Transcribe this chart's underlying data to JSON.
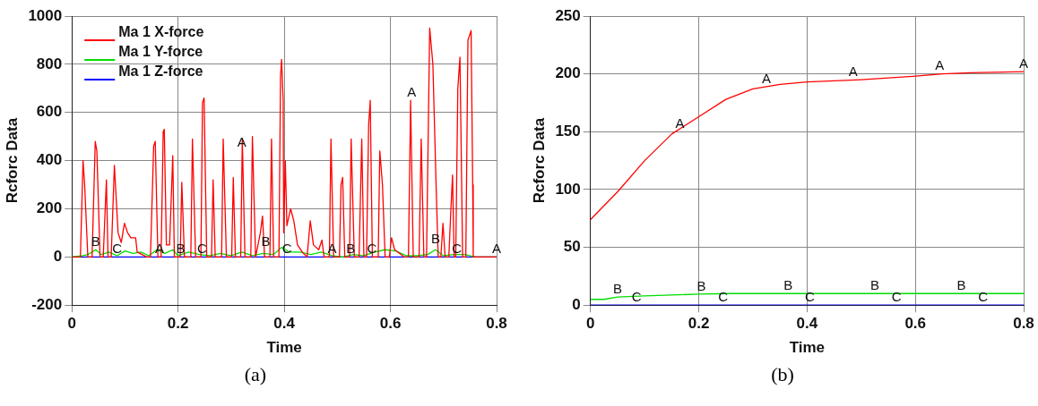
{
  "chart_data": [
    {
      "type": "line",
      "xlabel": "Time",
      "ylabel": "Rcforc Data",
      "xlim": [
        0,
        0.8
      ],
      "xticks": [
        0,
        0.2,
        0.4,
        0.6,
        0.8
      ],
      "ylim": [
        -200,
        1000
      ],
      "yticks": [
        -200,
        0,
        200,
        400,
        600,
        800,
        1000
      ],
      "grid": true,
      "legend": "top left",
      "marker": "none",
      "line_style": "solid",
      "series": [
        {
          "name": "Ma 1 X-force",
          "color": "#ff0000",
          "x": [
            0,
            0.016,
            0.021,
            0.024,
            0.03,
            0.038,
            0.044,
            0.047,
            0.053,
            0.059,
            0.065,
            0.068,
            0.074,
            0.08,
            0.087,
            0.093,
            0.099,
            0.105,
            0.111,
            0.12,
            0.123,
            0.141,
            0.148,
            0.154,
            0.157,
            0.162,
            0.168,
            0.172,
            0.174,
            0.178,
            0.184,
            0.19,
            0.193,
            0.204,
            0.207,
            0.212,
            0.224,
            0.227,
            0.233,
            0.243,
            0.246,
            0.249,
            0.254,
            0.263,
            0.266,
            0.27,
            0.282,
            0.285,
            0.291,
            0.301,
            0.304,
            0.308,
            0.318,
            0.321,
            0.326,
            0.337,
            0.34,
            0.346,
            0.355,
            0.359,
            0.363,
            0.373,
            0.376,
            0.38,
            0.39,
            0.393,
            0.395,
            0.398,
            0.399,
            0.402,
            0.405,
            0.412,
            0.418,
            0.425,
            0.434,
            0.443,
            0.449,
            0.455,
            0.465,
            0.471,
            0.475,
            0.485,
            0.488,
            0.493,
            0.504,
            0.507,
            0.51,
            0.514,
            0.523,
            0.526,
            0.532,
            0.541,
            0.546,
            0.55,
            0.555,
            0.559,
            0.562,
            0.566,
            0.577,
            0.58,
            0.585,
            0.59,
            0.598,
            0.602,
            0.608,
            0.626,
            0.634,
            0.638,
            0.643,
            0.654,
            0.658,
            0.663,
            0.668,
            0.674,
            0.68,
            0.686,
            0.69,
            0.695,
            0.699,
            0.703,
            0.71,
            0.714,
            0.717,
            0.72,
            0.723,
            0.727,
            0.731,
            0.736,
            0.742,
            0.746,
            0.752,
            0.755,
            0.756,
            0.8
          ],
          "values": [
            0,
            0,
            400,
            300,
            0,
            0,
            480,
            440,
            0,
            0,
            320,
            0,
            0,
            380,
            100,
            60,
            140,
            100,
            80,
            80,
            20,
            0,
            0,
            460,
            480,
            0,
            0,
            520,
            530,
            50,
            50,
            420,
            0,
            0,
            310,
            0,
            0,
            490,
            0,
            0,
            640,
            660,
            0,
            0,
            320,
            0,
            0,
            490,
            0,
            0,
            330,
            0,
            0,
            490,
            0,
            0,
            500,
            0,
            100,
            170,
            0,
            0,
            490,
            0,
            0,
            750,
            820,
            650,
            100,
            400,
            130,
            200,
            150,
            50,
            20,
            0,
            150,
            50,
            30,
            70,
            0,
            0,
            490,
            0,
            0,
            300,
            330,
            0,
            0,
            490,
            0,
            0,
            490,
            0,
            0,
            550,
            650,
            0,
            0,
            440,
            300,
            0,
            0,
            80,
            30,
            0,
            0,
            650,
            0,
            0,
            490,
            0,
            0,
            950,
            800,
            300,
            0,
            0,
            140,
            0,
            0,
            200,
            340,
            0,
            0,
            700,
            830,
            0,
            0,
            900,
            940,
            300,
            0,
            0
          ]
        },
        {
          "name": "Ma 1 Y-force",
          "color": "#00dd00",
          "x": [
            0,
            0.02,
            0.03,
            0.045,
            0.055,
            0.07,
            0.085,
            0.1,
            0.115,
            0.13,
            0.145,
            0.16,
            0.175,
            0.19,
            0.2,
            0.22,
            0.24,
            0.26,
            0.28,
            0.3,
            0.32,
            0.34,
            0.36,
            0.38,
            0.395,
            0.41,
            0.43,
            0.45,
            0.47,
            0.49,
            0.51,
            0.53,
            0.55,
            0.57,
            0.59,
            0.61,
            0.63,
            0.65,
            0.67,
            0.685,
            0.7,
            0.72,
            0.74,
            0.76,
            0.8
          ],
          "values": [
            0,
            5,
            10,
            30,
            10,
            20,
            5,
            25,
            15,
            20,
            5,
            30,
            15,
            30,
            5,
            20,
            10,
            5,
            15,
            5,
            20,
            5,
            15,
            10,
            40,
            20,
            20,
            10,
            20,
            5,
            0,
            10,
            5,
            20,
            30,
            25,
            5,
            5,
            10,
            30,
            5,
            10,
            10,
            0,
            0
          ]
        },
        {
          "name": "Ma 1 Z-force",
          "color": "#0000ff",
          "x": [
            0,
            0.8
          ],
          "values": [
            0,
            0
          ]
        }
      ],
      "annotations": [
        {
          "text": "A",
          "x": 0.32,
          "y": 440
        },
        {
          "text": "A",
          "x": 0.64,
          "y": 650
        },
        {
          "text": "A",
          "x": 0.165,
          "y": 0
        },
        {
          "text": "A",
          "x": 0.49,
          "y": 0
        },
        {
          "text": "A",
          "x": 0.8,
          "y": 0
        },
        {
          "text": "B",
          "x": 0.045,
          "y": 30
        },
        {
          "text": "B",
          "x": 0.205,
          "y": 0
        },
        {
          "text": "B",
          "x": 0.365,
          "y": 30
        },
        {
          "text": "B",
          "x": 0.525,
          "y": 0
        },
        {
          "text": "B",
          "x": 0.685,
          "y": 40
        },
        {
          "text": "C",
          "x": 0.085,
          "y": 0
        },
        {
          "text": "C",
          "x": 0.245,
          "y": 0
        },
        {
          "text": "C",
          "x": 0.405,
          "y": 0
        },
        {
          "text": "C",
          "x": 0.565,
          "y": 0
        },
        {
          "text": "C",
          "x": 0.725,
          "y": 0
        },
        "(a)"
      ]
    },
    {
      "type": "line",
      "xlabel": "Time",
      "ylabel": "Rcforc Data",
      "xlim": [
        0,
        0.8
      ],
      "xticks": [
        0,
        0.2,
        0.4,
        0.6,
        0.8
      ],
      "ylim": [
        0,
        250
      ],
      "yticks": [
        0,
        50,
        100,
        150,
        200,
        250
      ],
      "grid": true,
      "marker": "none",
      "line_style": "solid",
      "series": [
        {
          "color": "#ff0000",
          "x": [
            0,
            0.05,
            0.1,
            0.15,
            0.2,
            0.25,
            0.3,
            0.35,
            0.4,
            0.5,
            0.6,
            0.65,
            0.7,
            0.8
          ],
          "values": [
            74,
            98,
            125,
            148,
            163,
            178,
            187,
            191,
            193,
            195,
            198,
            200,
            201,
            202
          ]
        },
        {
          "color": "#00dd00",
          "x": [
            0,
            0.025,
            0.05,
            0.1,
            0.2,
            0.26,
            0.8
          ],
          "values": [
            5,
            5,
            7,
            8,
            9.5,
            10,
            10
          ]
        },
        {
          "color": "#0000ff",
          "x": [
            0,
            0.8
          ],
          "values": [
            0,
            0
          ]
        }
      ],
      "annotations": [
        {
          "text": "A",
          "x": 0.165,
          "y": 150
        },
        {
          "text": "A",
          "x": 0.325,
          "y": 189
        },
        {
          "text": "A",
          "x": 0.485,
          "y": 195
        },
        {
          "text": "A",
          "x": 0.645,
          "y": 200
        },
        {
          "text": "A",
          "x": 0.8,
          "y": 202
        },
        {
          "text": "B",
          "x": 0.05,
          "y": 7
        },
        {
          "text": "B",
          "x": 0.205,
          "y": 9
        },
        {
          "text": "B",
          "x": 0.365,
          "y": 10
        },
        {
          "text": "B",
          "x": 0.525,
          "y": 10
        },
        {
          "text": "B",
          "x": 0.685,
          "y": 10
        },
        {
          "text": "C",
          "x": 0.085,
          "y": 0
        },
        {
          "text": "C",
          "x": 0.245,
          "y": 0
        },
        {
          "text": "C",
          "x": 0.405,
          "y": 0
        },
        {
          "text": "C",
          "x": 0.565,
          "y": 0
        },
        {
          "text": "C",
          "x": 0.725,
          "y": 0
        },
        "(b)"
      ]
    }
  ]
}
